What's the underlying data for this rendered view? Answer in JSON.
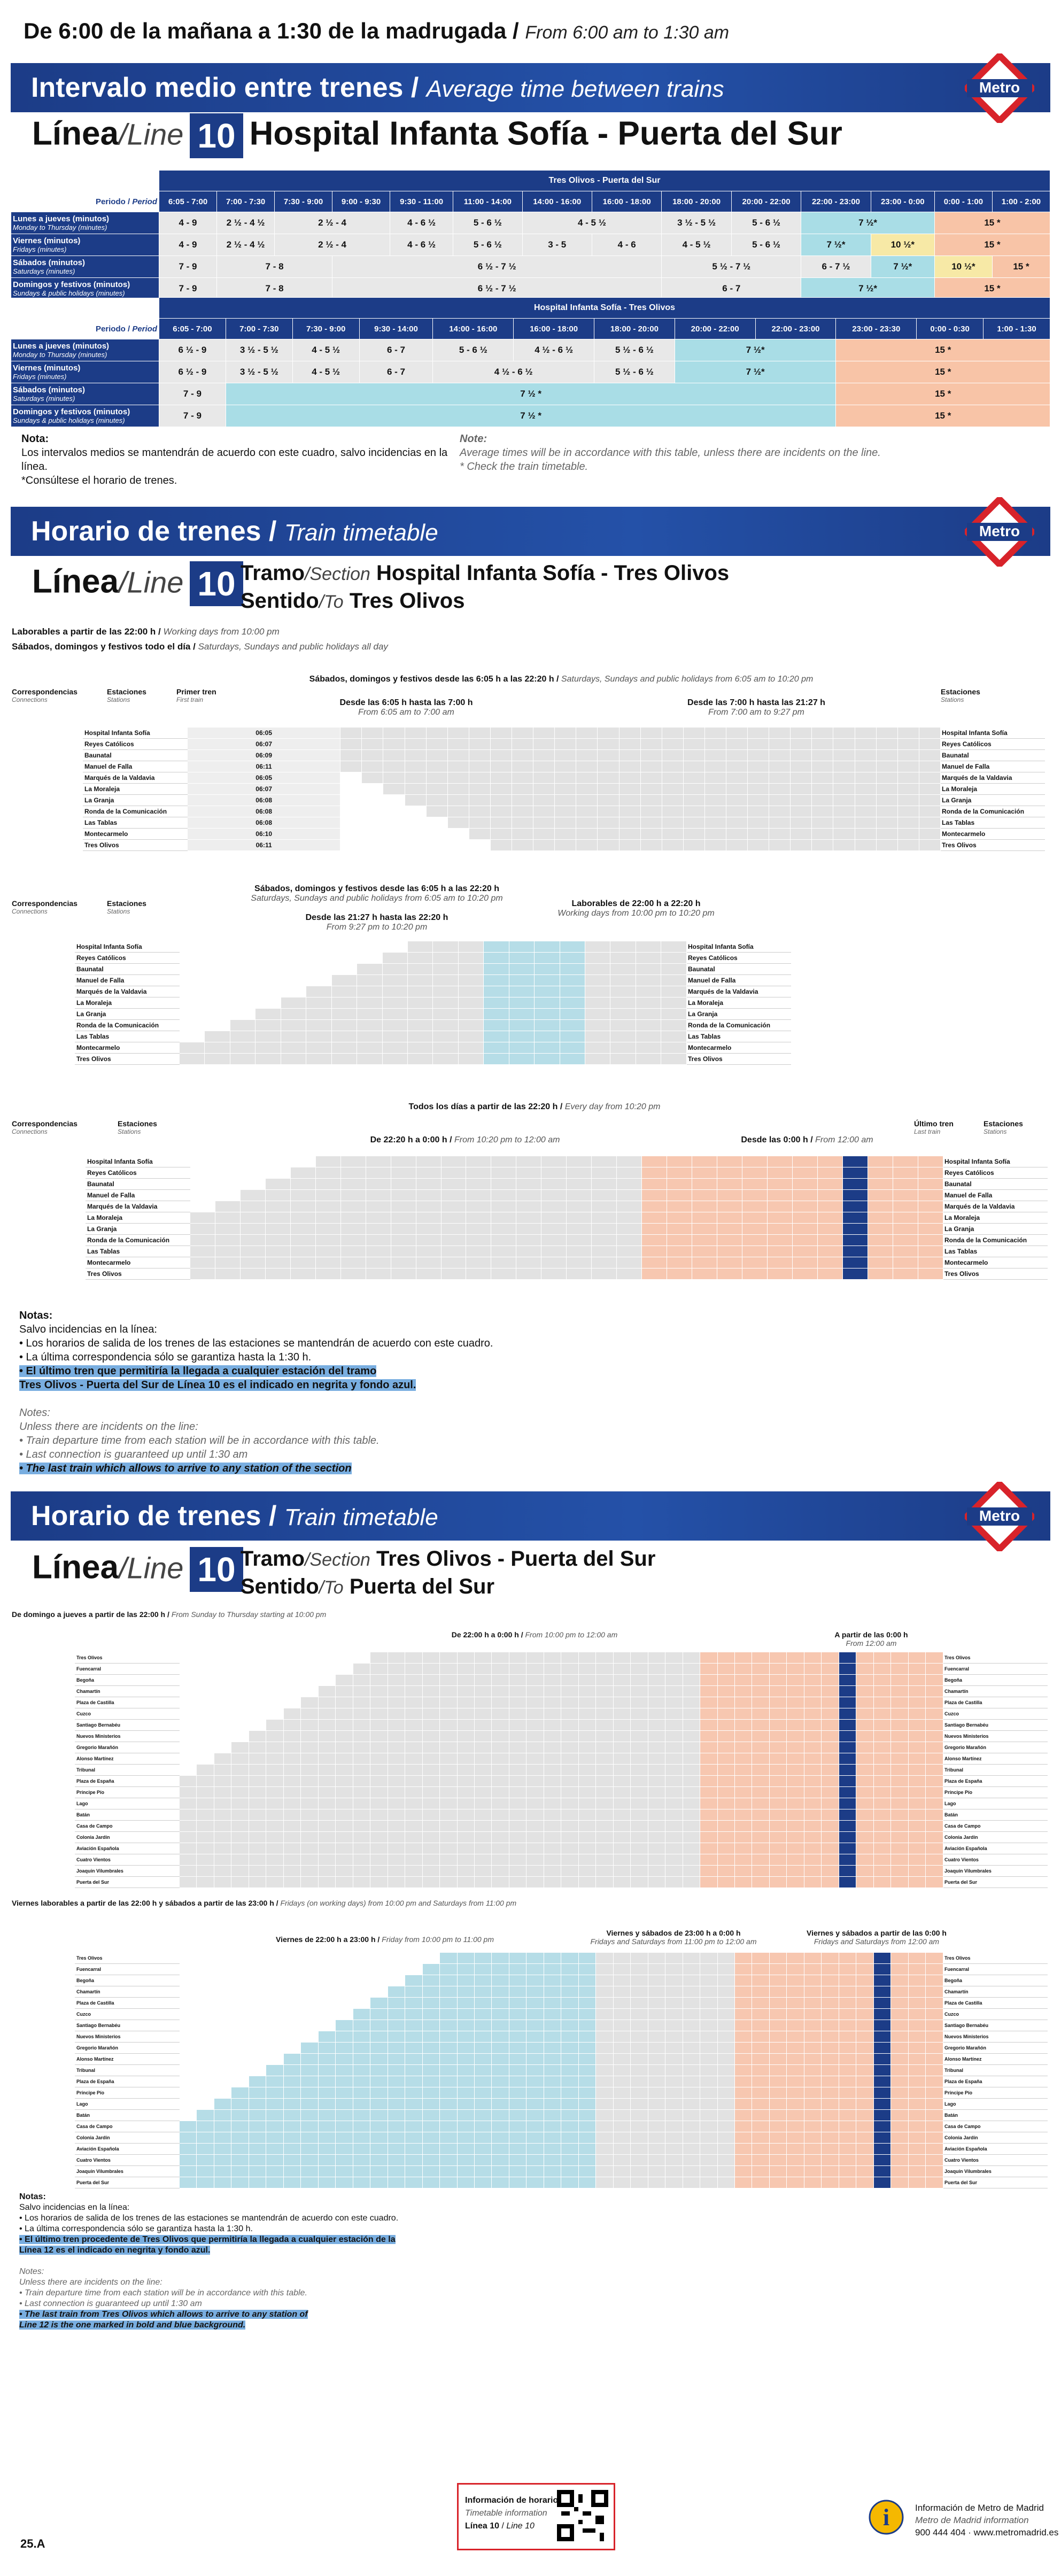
{
  "hours": {
    "es": "De 6:00 de la mañana a 1:30 de la madrugada",
    "en": "From 6:00 am to 1:30 am"
  },
  "banner1": {
    "es": "Intervalo medio entre trenes",
    "en": "Average time between trains"
  },
  "banner2": {
    "es": "Horario de trenes",
    "en": "Train timetable"
  },
  "metro_logo": "Metro",
  "line": {
    "es": "Línea",
    "en": "Line",
    "number": "10",
    "route": "Hospital Infanta Sofía - Puerta del Sur"
  },
  "freq1": {
    "title": "Tres Olivos - Puerta del Sur",
    "period_label": "Periodo",
    "period_en": "Period",
    "cols": [
      "6:05 - 7:00",
      "7:00 - 7:30",
      "7:30 - 9:00",
      "9:00 - 9:30",
      "9:30 - 11:00",
      "11:00 - 14:00",
      "14:00 - 16:00",
      "16:00 - 18:00",
      "18:00 - 20:00",
      "20:00 - 22:00",
      "22:00 - 23:00",
      "23:00 - 0:00",
      "0:00 - 1:00",
      "1:00 - 2:00"
    ],
    "rows": [
      {
        "es": "Lunes a jueves (minutos)",
        "en": "Monday to Thursday (minutes)",
        "vals": [
          "4 - 9",
          "2 ½ - 4 ½",
          "2 ½ - 4",
          "4 - 6 ½",
          "5 - 6 ½",
          "4 - 5 ½",
          "3 ½ - 5 ½",
          "5 - 6 ½",
          "7 ½*",
          "15 *"
        ]
      },
      {
        "es": "Viernes (minutos)",
        "en": "Fridays (minutes)",
        "vals": [
          "4 - 9",
          "2 ½ - 4 ½",
          "2 ½ - 4",
          "4 - 6 ½",
          "5 - 6 ½",
          "3 - 5",
          "4 - 6",
          "4 - 5 ½",
          "5 - 6 ½",
          "7 ½*",
          "10 ½*",
          "15 *"
        ]
      },
      {
        "es": "Sábados (minutos)",
        "en": "Saturdays (minutes)",
        "vals": [
          "7 - 9",
          "7 - 8",
          "6 ½ - 7 ½",
          "5 ½ - 7 ½",
          "6 - 7 ½",
          "7 ½*",
          "10 ½*",
          "15 *"
        ]
      },
      {
        "es": "Domingos y festivos (minutos)",
        "en": "Sundays & public holidays (minutes)",
        "vals": [
          "7 - 9",
          "7 - 8",
          "6 ½ - 7 ½",
          "6 - 7",
          "7 ½*",
          "15 *"
        ]
      }
    ]
  },
  "freq2": {
    "title": "Hospital Infanta Sofía - Tres Olivos",
    "cols": [
      "6:05 - 7:00",
      "7:00 - 7:30",
      "7:30 - 9:00",
      "9:30 - 14:00",
      "14:00 - 16:00",
      "16:00 - 18:00",
      "18:00 - 20:00",
      "20:00 - 22:00",
      "22:00 - 23:00",
      "23:00 - 23:30",
      "0:00 - 0:30",
      "1:00 - 1:30"
    ],
    "rows": [
      {
        "es": "Lunes a jueves (minutos)",
        "en": "Monday to Thursday (minutes)",
        "vals": [
          "6 ½ - 9",
          "3 ½ - 5 ½",
          "4 - 5 ½",
          "6 - 7",
          "5 - 6 ½",
          "4 ½ - 6 ½",
          "5 ½ - 6 ½",
          "7 ½*",
          "15 *"
        ]
      },
      {
        "es": "Viernes (minutos)",
        "en": "Fridays (minutes)",
        "vals": [
          "6 ½ - 9",
          "3 ½ - 5 ½",
          "4 - 5 ½",
          "6 - 7",
          "4 ½ - 6 ½",
          "5 ½ - 6 ½",
          "7 ½*",
          "15 *"
        ]
      },
      {
        "es": "Sábados (minutos)",
        "en": "Saturdays (minutes)",
        "vals": [
          "7 - 9",
          "7 ½ *",
          "15 *"
        ]
      },
      {
        "es": "Domingos y festivos (minutos)",
        "en": "Sundays & public holidays (minutes)",
        "vals": [
          "7 - 9",
          "7 ½ *",
          "15 *"
        ]
      }
    ]
  },
  "note1": {
    "title_es": "Nota:",
    "title_en": "Note:",
    "es1": "Los intervalos medios se mantendrán de acuerdo con este cuadro, salvo incidencias en la línea.",
    "es2": "*Consúltese el horario de trenes.",
    "en1": "Average times will be in accordance with this table, unless there are incidents on the line.",
    "en2": "* Check the train timetable."
  },
  "section1": {
    "tramo_es": "Tramo",
    "tramo_en": "Section",
    "tramo": "Hospital Infanta Sofía - Tres Olivos",
    "sentido_es": "Sentido",
    "sentido_en": "To",
    "sentido": "Tres Olivos"
  },
  "section2": {
    "tramo": "Tres Olivos - Puerta del Sur",
    "sentido": "Puerta del Sur"
  },
  "s1_labels": {
    "l1_es": "Laborables a partir de las 22:00 h",
    "l1_en": "Working days from 10:00 pm",
    "l2_es": "Sábados, domingos y festivos todo el día",
    "l2_en": "Saturdays, Sundays and public holidays all day",
    "hdr_es": "Sábados, domingos y festivos desde las 6:05 h a las 22:20 h",
    "hdr_en": "Saturdays, Sundays and public holidays from 6:05 am to 10:20 pm",
    "sub1_es": "Desde las 6:05 h hasta las 7:00 h",
    "sub1_en": "From 6:05 am to 7:00 am",
    "sub2_es": "Desde las 7:00 h hasta las 21:27 h",
    "sub2_en": "From 7:00 am to 9:27 pm",
    "sub3_es": "Desde las 21:27 h hasta las 22:20 h",
    "sub3_en": "From 9:27 pm to 10:20 pm",
    "lab_es": "Laborables de 22:00 h a 22:20 h",
    "lab_en": "Working days from 10:00 pm to 10:20 pm",
    "all_es": "Todos los días a partir de las 22:20 h",
    "all_en": "Every day from 10:20 pm",
    "sub4_es": "De 22:20 h a 0:00 h",
    "sub4_en": "From 10:20 pm to 12:00 am",
    "sub5_es": "Desde las 0:00 h",
    "sub5_en": "From 12:00 am",
    "corr": "Correspondencias",
    "corr_en": "Connections",
    "est": "Estaciones",
    "est_en": "Stations",
    "first": "Primer tren",
    "first_en": "First train",
    "last": "Último tren",
    "last_en": "Last train"
  },
  "stations1": [
    "Hospital Infanta Sofía",
    "Reyes Católicos",
    "Baunatal",
    "Manuel de Falla",
    "Marqués de la Valdavia",
    "La Moraleja",
    "La Granja",
    "Ronda de la Comunicación",
    "Las Tablas",
    "Montecarmelo",
    "Tres Olivos"
  ],
  "first1": [
    "06:05",
    "06:07",
    "06:09",
    "06:11",
    "06:05",
    "06:07",
    "06:08",
    "06:08",
    "06:08",
    "06:10",
    "06:11"
  ],
  "stations2": [
    "Tres Olivos",
    "Fuencarral",
    "Begoña",
    "Chamartín",
    "Plaza de Castilla",
    "Cuzco",
    "Santiago Bernabéu",
    "Nuevos Ministerios",
    "Gregorio Marañón",
    "Alonso Martínez",
    "Tribunal",
    "Plaza de España",
    "Príncipe Pío",
    "Lago",
    "Batán",
    "Casa de Campo",
    "Colonia Jardín",
    "Aviación Española",
    "Cuatro Vientos",
    "Joaquín Vilumbrales",
    "Puerta del Sur"
  ],
  "notes2": {
    "title": "Notas:",
    "l0": "Salvo incidencias en la línea:",
    "l1": "• Los horarios de salida de los trenes de las estaciones se mantendrán de acuerdo con este cuadro.",
    "l2": "• La última correspondencia sólo se garantiza hasta la 1:30 h.",
    "l3": "• El último tren que permitiría la llegada a cualquier estación del tramo",
    "l4": "Tres Olivos - Puerta del Sur de Línea 10 es el indicado en negrita y fondo azul.",
    "e0": "Notes:",
    "e1": "Unless there are incidents on the line:",
    "e2": "• Train departure time from each station will be in accordance with this table.",
    "e3": "• Last connection is guaranteed up until 1:30 am",
    "e4": "• The last train which allows to arrive to any station of the section"
  },
  "s2_labels": {
    "l1_es": "De domingo a jueves a partir de las 22:00 h",
    "l1_en": "From Sunday to Thursday starting at 10:00 pm",
    "h1_es": "De 22:00 h a 0:00 h",
    "h1_en": "From 10:00 pm to 12:00 am",
    "h2_es": "A partir de las 0:00 h",
    "h2_en": "From 12:00 am",
    "l2_es": "Viernes laborables a partir de las 22:00 h y sábados a partir de las 23:00 h",
    "l2_en": "Fridays (on working days) from 10:00 pm and Saturdays from 11:00 pm",
    "h3_es": "Viernes de 22:00 h a 23:00 h",
    "h3_en": "Friday from 10:00 pm to 11:00 pm",
    "h4_es": "Viernes y sábados de 23:00 h a 0:00 h",
    "h4_en": "Fridays and Saturdays from 11:00 pm to 12:00 am",
    "h5_es": "Viernes y sábados a partir de las 0:00 h",
    "h5_en": "Fridays and Saturdays from 12:00 am"
  },
  "notes3": {
    "title": "Notas:",
    "l0": "Salvo incidencias en la línea:",
    "l1": "• Los horarios de salida de los trenes de las estaciones se mantendrán de acuerdo con este cuadro.",
    "l2": "• La última correspondencia sólo se garantiza hasta la 1:30 h.",
    "l3": "• El último tren procedente de Tres Olivos que permitiría la llegada a cualquier estación de la",
    "l4": "Línea 12 es el indicado en negrita y fondo azul.",
    "e0": "Notes:",
    "e1": "Unless there are incidents on the line:",
    "e2": "• Train departure time from each station will be in accordance with this table.",
    "e3": "• Last connection is guaranteed up until 1:30 am",
    "e4": "• The last train from Tres Olivos which allows to arrive to any station of",
    "e5": "Line 12 is the one marked in bold and blue background."
  },
  "footer": {
    "code": "25.A",
    "box_title": "Información de horarios",
    "box_en": "Timetable information",
    "box_line": "Línea 10",
    "box_line_en": "Line 10",
    "info_title": "Información de Metro de Madrid",
    "info_en": "Metro de Madrid information",
    "info_contact": "900 444 404 · www.metromadrid.es"
  },
  "colors": {
    "blue": "#1c3c87",
    "cyan": "#a9dde6",
    "salmon": "#f8c4a7",
    "yellow": "#f7e9a6",
    "red": "#d8232a"
  }
}
